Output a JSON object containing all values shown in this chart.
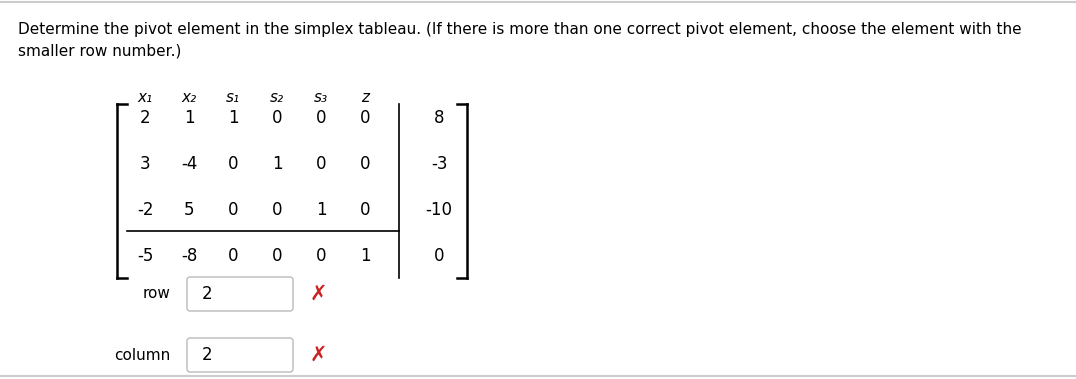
{
  "title_line1": "Determine the pivot element in the simplex tableau. (If there is more than one correct pivot element, choose the element with the",
  "title_line2": "smaller row number.)",
  "col_headers": [
    "x₁",
    "x₂",
    "s₁",
    "s₂",
    "s₃",
    "z"
  ],
  "matrix": [
    [
      2,
      1,
      1,
      0,
      0,
      0,
      8
    ],
    [
      3,
      -4,
      0,
      1,
      0,
      0,
      -3
    ],
    [
      -2,
      5,
      0,
      0,
      1,
      0,
      -10
    ],
    [
      -5,
      -8,
      0,
      0,
      0,
      1,
      0
    ]
  ],
  "row_label": "row",
  "col_label": "column",
  "row_value": "2",
  "col_value": "2",
  "background_color": "#ffffff",
  "text_color": "#000000",
  "red_x_color": "#cc2222",
  "title_fontsize": 11.0,
  "matrix_fontsize": 12,
  "header_fontsize": 11,
  "label_fontsize": 11,
  "bracket_color": "#000000",
  "separator_color": "#000000",
  "border_color": "#cccccc",
  "input_border_color": "#bbbbbb"
}
